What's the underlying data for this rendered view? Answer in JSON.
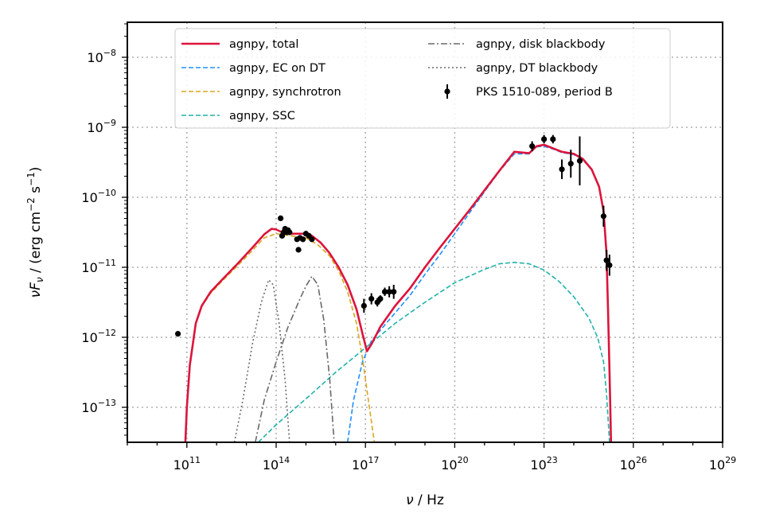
{
  "chart_data": {
    "type": "line",
    "xscale": "log",
    "yscale": "log",
    "xlim_log10": [
      9,
      29
    ],
    "ylim_log10": [
      -13.5,
      -7.5
    ],
    "x_ticks": [
      {
        "base": "10",
        "exp": "11",
        "log10": 11
      },
      {
        "base": "10",
        "exp": "14",
        "log10": 14
      },
      {
        "base": "10",
        "exp": "17",
        "log10": 17
      },
      {
        "base": "10",
        "exp": "20",
        "log10": 20
      },
      {
        "base": "10",
        "exp": "23",
        "log10": 23
      },
      {
        "base": "10",
        "exp": "26",
        "log10": 26
      },
      {
        "base": "10",
        "exp": "29",
        "log10": 29
      }
    ],
    "y_ticks": [
      {
        "base": "10",
        "exp": "−13",
        "log10": -13
      },
      {
        "base": "10",
        "exp": "−12",
        "log10": -12
      },
      {
        "base": "10",
        "exp": "−11",
        "log10": -11
      },
      {
        "base": "10",
        "exp": "−10",
        "log10": -10
      },
      {
        "base": "10",
        "exp": "−9",
        "log10": -9
      },
      {
        "base": "10",
        "exp": "−8",
        "log10": -8
      }
    ],
    "xlabel": {
      "nu": "ν",
      "unit": " / Hz"
    },
    "ylabel": {
      "nu": "ν",
      "F": "F",
      "sub": "ν",
      "unit": " / (erg cm",
      "exp1": "−2",
      "mid": " s",
      "exp2": "−1",
      "close": ")"
    },
    "grid": true,
    "legend_position": "top",
    "legend": [
      {
        "label": "agnpy, total",
        "color": "#dc143c",
        "style": "solid"
      },
      {
        "label": "agnpy, EC on DT",
        "color": "#1e90ff",
        "style": "dashed"
      },
      {
        "label": "agnpy, synchrotron",
        "color": "#daa520",
        "style": "dashed"
      },
      {
        "label": "agnpy, SSC",
        "color": "#20b2aa",
        "style": "dashed"
      },
      {
        "label": "agnpy, disk blackbody",
        "color": "#696969",
        "style": "dashdot"
      },
      {
        "label": "agnpy, DT blackbody",
        "color": "#696969",
        "style": "dotted"
      },
      {
        "label": "PKS 1510-089, period B",
        "color": "#000000",
        "style": "errorbar"
      }
    ],
    "series": [
      {
        "name": "agnpy, total",
        "color": "#dc143c",
        "style": "solid",
        "width": 2.6,
        "points": [
          [
            10.95,
            -13.5
          ],
          [
            11.0,
            -13.0
          ],
          [
            11.1,
            -12.4
          ],
          [
            11.3,
            -11.8
          ],
          [
            11.5,
            -11.55
          ],
          [
            11.8,
            -11.35
          ],
          [
            12.2,
            -11.17
          ],
          [
            12.7,
            -10.95
          ],
          [
            13.2,
            -10.72
          ],
          [
            13.6,
            -10.53
          ],
          [
            13.85,
            -10.45
          ],
          [
            14.0,
            -10.46
          ],
          [
            14.2,
            -10.5
          ],
          [
            14.5,
            -10.52
          ],
          [
            14.8,
            -10.52
          ],
          [
            15.0,
            -10.52
          ],
          [
            15.2,
            -10.55
          ],
          [
            15.5,
            -10.65
          ],
          [
            15.8,
            -10.8
          ],
          [
            16.1,
            -11.0
          ],
          [
            16.4,
            -11.25
          ],
          [
            16.7,
            -11.6
          ],
          [
            16.9,
            -11.95
          ],
          [
            17.05,
            -12.2
          ],
          [
            17.2,
            -12.1
          ],
          [
            17.5,
            -11.85
          ],
          [
            18.0,
            -11.55
          ],
          [
            18.5,
            -11.3
          ],
          [
            19.0,
            -11.0
          ],
          [
            19.5,
            -10.72
          ],
          [
            20.0,
            -10.45
          ],
          [
            20.5,
            -10.18
          ],
          [
            21.0,
            -9.9
          ],
          [
            21.5,
            -9.62
          ],
          [
            22.0,
            -9.35
          ],
          [
            22.5,
            -9.37
          ],
          [
            22.75,
            -9.27
          ],
          [
            23.0,
            -9.25
          ],
          [
            23.3,
            -9.3
          ],
          [
            23.6,
            -9.35
          ],
          [
            24.0,
            -9.38
          ],
          [
            24.3,
            -9.45
          ],
          [
            24.6,
            -9.6
          ],
          [
            24.85,
            -9.85
          ],
          [
            25.0,
            -10.2
          ],
          [
            25.1,
            -10.8
          ],
          [
            25.15,
            -11.6
          ],
          [
            25.2,
            -12.5
          ],
          [
            25.25,
            -13.5
          ]
        ]
      },
      {
        "name": "agnpy, EC on DT",
        "color": "#1e90ff",
        "style": "dashed",
        "width": 1.6,
        "points": [
          [
            16.4,
            -13.5
          ],
          [
            16.6,
            -12.9
          ],
          [
            16.9,
            -12.35
          ],
          [
            17.2,
            -12.05
          ],
          [
            17.6,
            -11.85
          ],
          [
            18.0,
            -11.65
          ],
          [
            18.5,
            -11.4
          ],
          [
            19.0,
            -11.1
          ],
          [
            19.5,
            -10.82
          ],
          [
            20.0,
            -10.52
          ],
          [
            20.5,
            -10.22
          ],
          [
            21.0,
            -9.92
          ],
          [
            21.5,
            -9.63
          ],
          [
            22.0,
            -9.38
          ],
          [
            22.5,
            -9.38
          ],
          [
            22.75,
            -9.28
          ],
          [
            23.0,
            -9.27
          ],
          [
            23.3,
            -9.31
          ],
          [
            23.6,
            -9.36
          ],
          [
            24.0,
            -9.39
          ],
          [
            24.3,
            -9.46
          ],
          [
            24.6,
            -9.61
          ],
          [
            24.85,
            -9.86
          ],
          [
            25.0,
            -10.22
          ],
          [
            25.1,
            -10.85
          ],
          [
            25.15,
            -11.7
          ],
          [
            25.2,
            -12.6
          ],
          [
            25.25,
            -13.5
          ]
        ]
      },
      {
        "name": "agnpy, synchrotron",
        "color": "#daa520",
        "style": "dashed",
        "width": 1.6,
        "points": [
          [
            10.95,
            -13.5
          ],
          [
            11.0,
            -13.0
          ],
          [
            11.1,
            -12.4
          ],
          [
            11.3,
            -11.8
          ],
          [
            11.5,
            -11.56
          ],
          [
            11.8,
            -11.37
          ],
          [
            12.2,
            -11.19
          ],
          [
            12.7,
            -10.98
          ],
          [
            13.2,
            -10.76
          ],
          [
            13.6,
            -10.58
          ],
          [
            14.0,
            -10.52
          ],
          [
            14.5,
            -10.55
          ],
          [
            15.0,
            -10.58
          ],
          [
            15.4,
            -10.68
          ],
          [
            15.8,
            -10.84
          ],
          [
            16.1,
            -11.05
          ],
          [
            16.4,
            -11.35
          ],
          [
            16.7,
            -11.8
          ],
          [
            16.9,
            -12.3
          ],
          [
            17.1,
            -12.9
          ],
          [
            17.3,
            -13.5
          ]
        ]
      },
      {
        "name": "agnpy, SSC",
        "color": "#20b2aa",
        "style": "dashed",
        "width": 1.6,
        "points": [
          [
            13.4,
            -13.5
          ],
          [
            14.0,
            -13.25
          ],
          [
            15.0,
            -12.88
          ],
          [
            16.0,
            -12.5
          ],
          [
            17.0,
            -12.15
          ],
          [
            18.0,
            -11.8
          ],
          [
            19.0,
            -11.5
          ],
          [
            20.0,
            -11.22
          ],
          [
            21.0,
            -11.03
          ],
          [
            21.5,
            -10.95
          ],
          [
            22.0,
            -10.93
          ],
          [
            22.5,
            -10.95
          ],
          [
            23.0,
            -11.04
          ],
          [
            23.5,
            -11.2
          ],
          [
            24.0,
            -11.42
          ],
          [
            24.5,
            -11.72
          ],
          [
            24.8,
            -12.0
          ],
          [
            25.0,
            -12.35
          ],
          [
            25.1,
            -12.8
          ],
          [
            25.2,
            -13.5
          ]
        ]
      },
      {
        "name": "agnpy, disk blackbody",
        "color": "#696969",
        "style": "dashdot",
        "width": 1.6,
        "points": [
          [
            13.3,
            -13.5
          ],
          [
            13.6,
            -12.9
          ],
          [
            14.0,
            -12.35
          ],
          [
            14.4,
            -11.85
          ],
          [
            14.8,
            -11.45
          ],
          [
            15.0,
            -11.27
          ],
          [
            15.2,
            -11.13
          ],
          [
            15.4,
            -11.25
          ],
          [
            15.6,
            -11.75
          ],
          [
            15.8,
            -12.6
          ],
          [
            15.95,
            -13.5
          ]
        ]
      },
      {
        "name": "agnpy, DT blackbody",
        "color": "#696969",
        "style": "dotted",
        "width": 1.6,
        "points": [
          [
            12.6,
            -13.5
          ],
          [
            12.9,
            -12.85
          ],
          [
            13.2,
            -12.1
          ],
          [
            13.5,
            -11.5
          ],
          [
            13.75,
            -11.18
          ],
          [
            13.9,
            -11.25
          ],
          [
            14.1,
            -11.8
          ],
          [
            14.3,
            -12.6
          ],
          [
            14.45,
            -13.5
          ]
        ]
      }
    ],
    "data_points": [
      [
        10.7,
        -11.95,
        0.02
      ],
      [
        14.15,
        -10.3,
        0.02
      ],
      [
        14.2,
        -10.55,
        0.03
      ],
      [
        14.25,
        -10.5,
        0.03
      ],
      [
        14.3,
        -10.45,
        0.03
      ],
      [
        14.35,
        -10.5,
        0.03
      ],
      [
        14.4,
        -10.47,
        0.03
      ],
      [
        14.45,
        -10.5,
        0.03
      ],
      [
        14.7,
        -10.6,
        0.03
      ],
      [
        14.75,
        -10.75,
        0.03
      ],
      [
        14.8,
        -10.58,
        0.03
      ],
      [
        14.9,
        -10.6,
        0.03
      ],
      [
        15.0,
        -10.52,
        0.03
      ],
      [
        15.1,
        -10.55,
        0.03
      ],
      [
        15.2,
        -10.6,
        0.03
      ],
      [
        16.95,
        -11.55,
        0.1
      ],
      [
        17.2,
        -11.45,
        0.08
      ],
      [
        17.4,
        -11.5,
        0.06
      ],
      [
        17.5,
        -11.45,
        0.05
      ],
      [
        17.65,
        -11.35,
        0.06
      ],
      [
        17.8,
        -11.35,
        0.08
      ],
      [
        17.95,
        -11.35,
        0.1
      ],
      [
        22.6,
        -9.27,
        0.07
      ],
      [
        23.0,
        -9.17,
        0.06
      ],
      [
        23.3,
        -9.17,
        0.06
      ],
      [
        23.6,
        -9.6,
        0.14
      ],
      [
        23.9,
        -9.52,
        0.2
      ],
      [
        24.2,
        -9.48,
        0.35
      ],
      [
        25.0,
        -10.27,
        0.15
      ],
      [
        25.1,
        -10.9,
        0.15
      ],
      [
        25.2,
        -10.97,
        0.15
      ]
    ]
  }
}
